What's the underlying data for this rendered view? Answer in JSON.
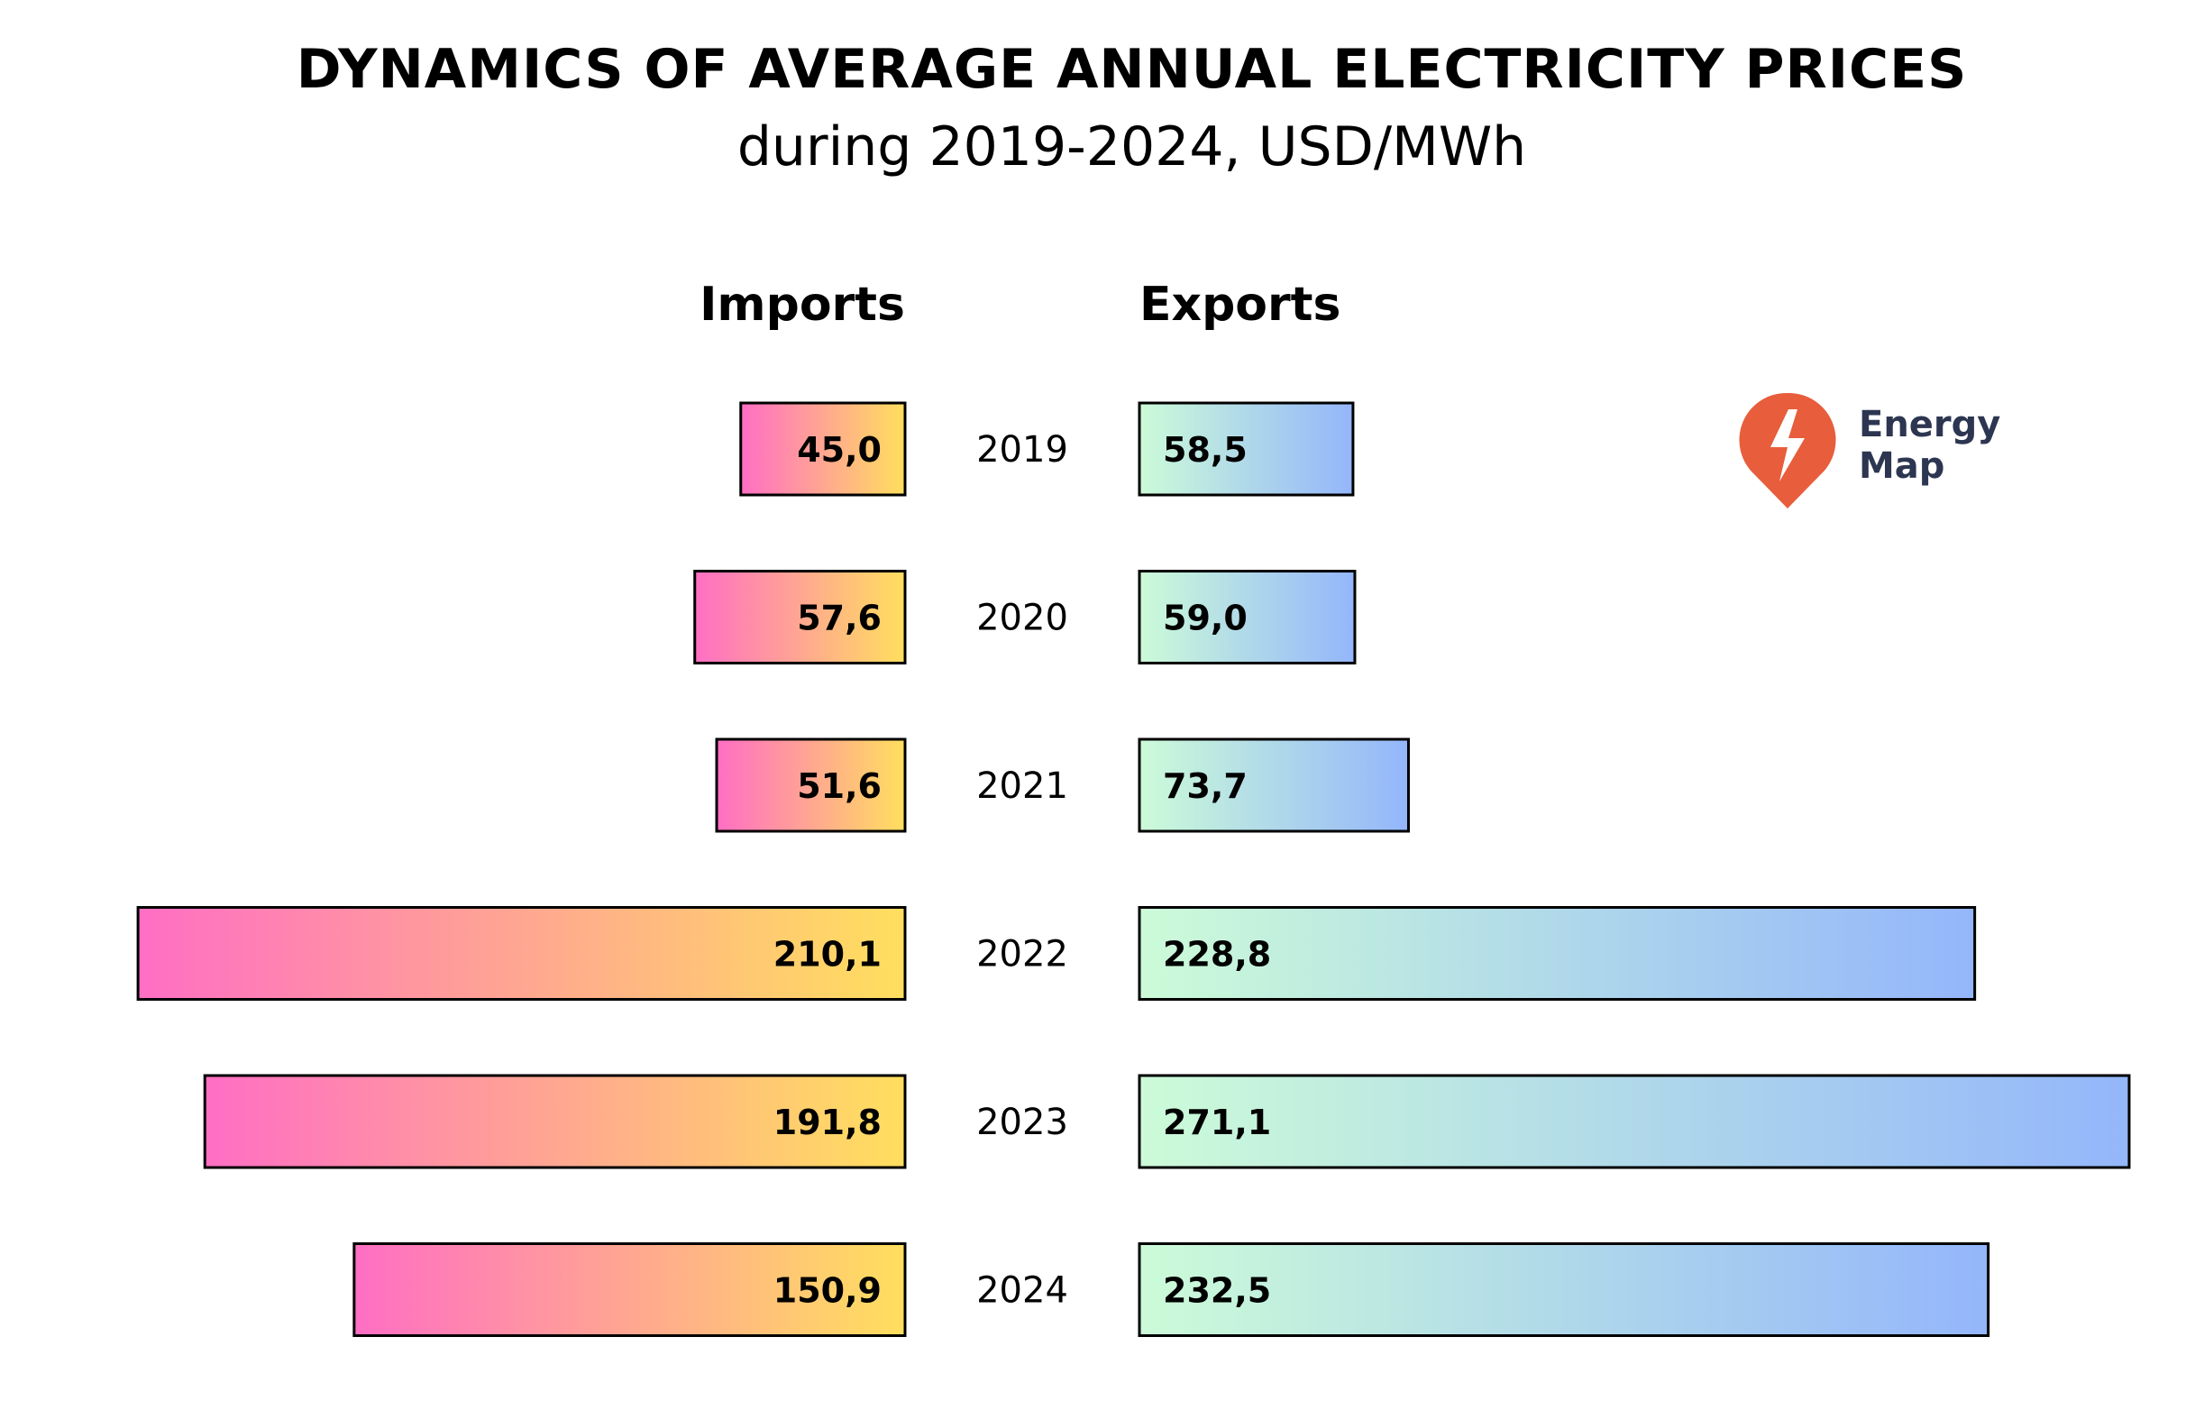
{
  "chart_data": {
    "type": "bar",
    "orientation": "horizontal-butterfly",
    "title": "DYNAMICS OF AVERAGE ANNUAL ELECTRICITY PRICES",
    "subtitle": "during 2019-2024, USD/MWh",
    "categories": [
      "2019",
      "2020",
      "2021",
      "2022",
      "2023",
      "2024"
    ],
    "series": [
      {
        "name": "Imports",
        "values": [
          45.0,
          57.6,
          51.6,
          210.1,
          191.8,
          150.9
        ],
        "labels": [
          "45,0",
          "57,6",
          "51,6",
          "210,1",
          "191,8",
          "150,9"
        ],
        "gradient": [
          "#ff6ec4",
          "#ffdf5e"
        ]
      },
      {
        "name": "Exports",
        "values": [
          58.5,
          59.0,
          73.7,
          228.8,
          271.1,
          232.5
        ],
        "labels": [
          "58,5",
          "59,0",
          "73,7",
          "228,8",
          "271,1",
          "232,5"
        ],
        "gradient": [
          "#ccfbd8",
          "#94b6fb"
        ]
      }
    ],
    "grid": false,
    "legend": "none"
  },
  "logo": {
    "line1": "Energy",
    "line2": "Map",
    "color": "#e85d3c",
    "text_color": "#2d3651"
  }
}
